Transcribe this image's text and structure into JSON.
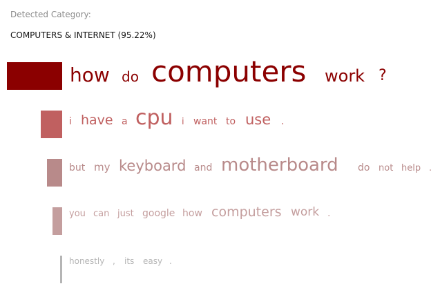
{
  "header": {
    "label": "Detected Category:",
    "category": "COMPUTERS & INTERNET (95.22%)"
  },
  "sentences": [
    {
      "color": "#8b0000",
      "words": [
        {
          "text": "how",
          "size": 28
        },
        {
          "text": "do",
          "size": 20
        },
        {
          "text": "computers",
          "size": 42
        },
        {
          "text": "work",
          "size": 24
        },
        {
          "text": "?",
          "size": 22
        }
      ]
    },
    {
      "color": "#c06060",
      "words": [
        {
          "text": "i",
          "size": 14
        },
        {
          "text": "have",
          "size": 19
        },
        {
          "text": "a",
          "size": 14
        },
        {
          "text": "cpu",
          "size": 30
        },
        {
          "text": "i",
          "size": 13
        },
        {
          "text": "want",
          "size": 14
        },
        {
          "text": "to",
          "size": 14
        },
        {
          "text": "use",
          "size": 21
        },
        {
          "text": ".",
          "size": 14
        }
      ]
    },
    {
      "color": "#b88a8a",
      "words": [
        {
          "text": "but",
          "size": 14
        },
        {
          "text": "my",
          "size": 15
        },
        {
          "text": "keyboard",
          "size": 21
        },
        {
          "text": "and",
          "size": 14
        },
        {
          "text": "motherboard",
          "size": 26
        },
        {
          "text": "do",
          "size": 14
        },
        {
          "text": "not",
          "size": 13
        },
        {
          "text": "help",
          "size": 13
        },
        {
          "text": ".",
          "size": 13
        }
      ]
    },
    {
      "color": "#c49e9e",
      "words": [
        {
          "text": "you",
          "size": 13
        },
        {
          "text": "can",
          "size": 13
        },
        {
          "text": "just",
          "size": 13
        },
        {
          "text": "google",
          "size": 14
        },
        {
          "text": "how",
          "size": 14
        },
        {
          "text": "computers",
          "size": 19
        },
        {
          "text": "work",
          "size": 17
        },
        {
          "text": ".",
          "size": 14
        }
      ]
    },
    {
      "color": "#b5b5b5",
      "words": [
        {
          "text": "honestly",
          "size": 12
        },
        {
          "text": ",",
          "size": 12
        },
        {
          "text": "its",
          "size": 12
        },
        {
          "text": "easy",
          "size": 12
        },
        {
          "text": ".",
          "size": 12
        }
      ]
    }
  ]
}
